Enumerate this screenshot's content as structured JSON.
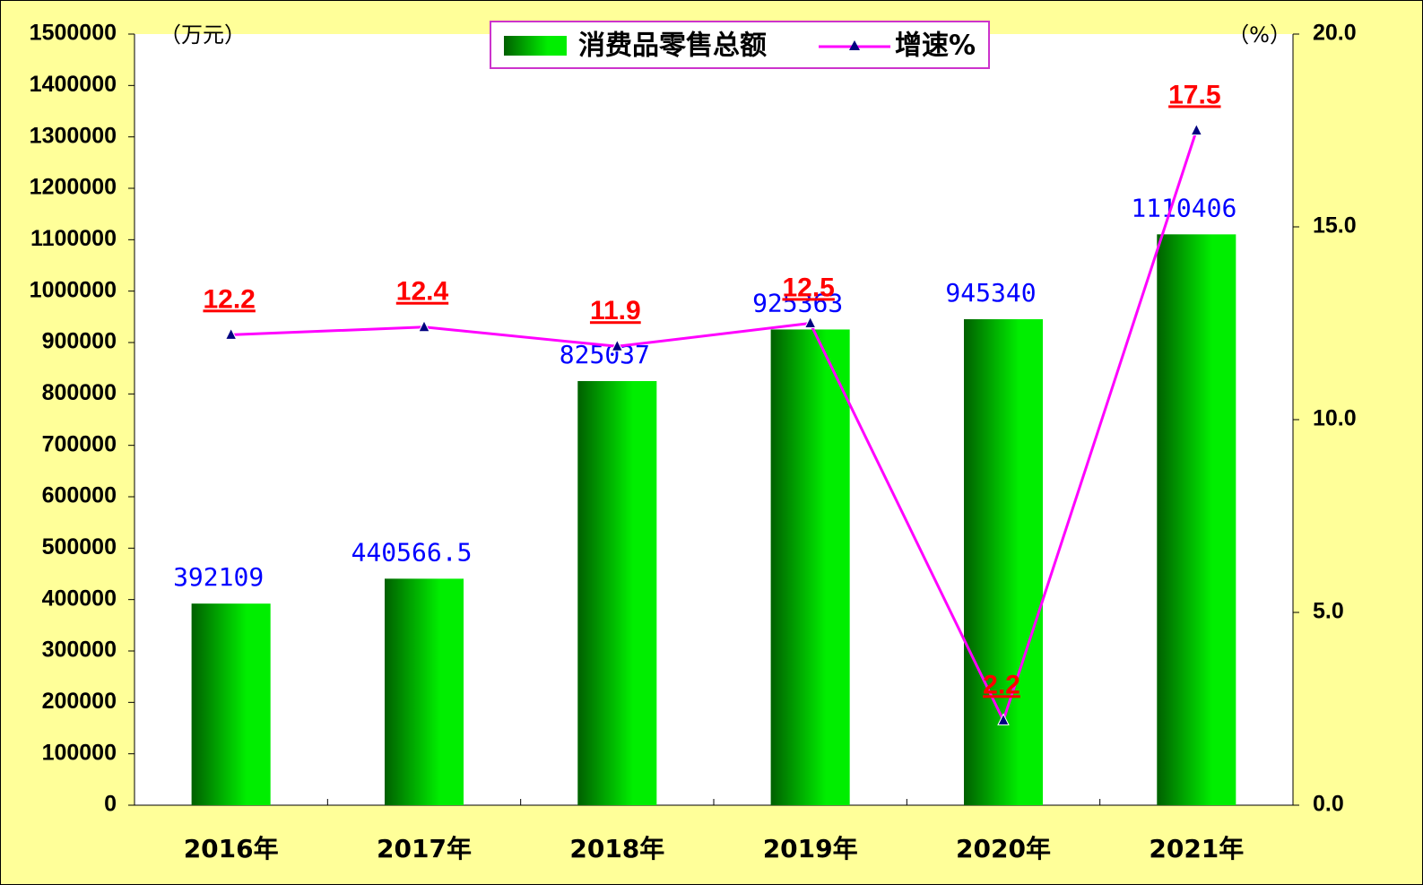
{
  "chart_data": {
    "type": "bar",
    "y_unit": "（万元）",
    "y2_unit": "（%）",
    "categories": [
      "2016年",
      "2017年",
      "2018年",
      "2019年",
      "2020年",
      "2021年"
    ],
    "series": [
      {
        "name": "消费品零售总额",
        "type": "bar",
        "color": "#00ee00",
        "values": [
          392109,
          440566.5,
          825037,
          925363,
          945340,
          1110406
        ]
      },
      {
        "name": "增速%",
        "type": "line",
        "axis": "y2",
        "color": "#ff00ff",
        "marker_color": "#000080",
        "values": [
          12.2,
          12.4,
          11.9,
          12.5,
          2.2,
          17.5
        ]
      }
    ],
    "ylim": [
      0,
      1500000
    ],
    "yticks": [
      0,
      100000,
      200000,
      300000,
      400000,
      500000,
      600000,
      700000,
      800000,
      900000,
      1000000,
      1100000,
      1200000,
      1300000,
      1400000,
      1500000
    ],
    "y2lim": [
      0,
      20
    ],
    "y2ticks": [
      {
        "value": 0,
        "label": "0.0"
      },
      {
        "value": 5,
        "label": "5.0"
      },
      {
        "value": 10,
        "label": "10.0"
      },
      {
        "value": 15,
        "label": "15.0"
      },
      {
        "value": 20,
        "label": "20.0"
      }
    ],
    "background": "#ffff99",
    "plot_background": "#ffffff"
  }
}
